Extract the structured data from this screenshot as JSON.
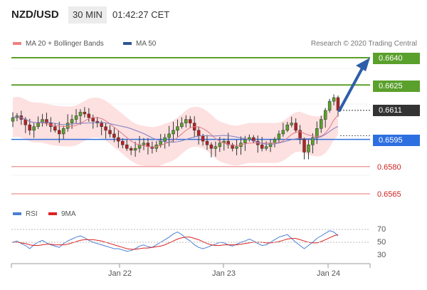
{
  "header": {
    "symbol": "NZD/USD",
    "timeframe": "30 MIN",
    "time": "01:42:27 CET"
  },
  "legend": {
    "ma20_label": "MA 20 + Bollinger Bands",
    "ma50_label": "MA 50",
    "rsi_label": "RSI",
    "ma9_label": "9MA",
    "ma20_color": "#f08080",
    "ma50_color": "#2f5496",
    "rsi_color": "#4a7fd4",
    "ma9_color": "#dd2222"
  },
  "attribution": "Research © 2020 Trading Central",
  "levels": {
    "l0640": "0.6640",
    "l0625": "0.6625",
    "l0611": "0.6611",
    "l0595": "0.6595",
    "l0580": "0.6580",
    "l0565": "0.6565"
  },
  "rsi_ticks": {
    "t70": "70",
    "t50": "50",
    "t30": "30"
  },
  "dates": {
    "d1": "Jan 22",
    "d2": "Jan 23",
    "d3": "Jan 24"
  },
  "chart_data": {
    "type": "candlestick",
    "y_range": [
      0.6555,
      0.665
    ],
    "resistance": [
      0.664,
      0.6625
    ],
    "support": [
      0.6595,
      0.658,
      0.6565
    ],
    "last_price": 0.6611,
    "close_series": [
      0.6607,
      0.6608,
      0.6606,
      0.6603,
      0.66,
      0.6602,
      0.6604,
      0.6606,
      0.6604,
      0.6602,
      0.66,
      0.6598,
      0.6601,
      0.6604,
      0.6606,
      0.6608,
      0.661,
      0.6609,
      0.6607,
      0.6605,
      0.6604,
      0.6602,
      0.66,
      0.6598,
      0.6596,
      0.6594,
      0.6592,
      0.659,
      0.6589,
      0.659,
      0.6592,
      0.6593,
      0.6591,
      0.659,
      0.6592,
      0.6594,
      0.6596,
      0.6598,
      0.66,
      0.6602,
      0.6604,
      0.6606,
      0.6604,
      0.66,
      0.6597,
      0.6594,
      0.6592,
      0.659,
      0.6591,
      0.6593,
      0.6594,
      0.6592,
      0.659,
      0.6591,
      0.6593,
      0.6595,
      0.6596,
      0.6594,
      0.6592,
      0.659,
      0.6591,
      0.6593,
      0.6595,
      0.6598,
      0.66,
      0.6603,
      0.6604,
      0.66,
      0.6595,
      0.6588,
      0.6592,
      0.6596,
      0.6601,
      0.6606,
      0.6611,
      0.6616,
      0.6618,
      0.6611
    ],
    "rsi": [
      50,
      52,
      48,
      45,
      40,
      46,
      50,
      53,
      49,
      46,
      44,
      42,
      48,
      52,
      55,
      58,
      60,
      57,
      53,
      50,
      48,
      46,
      44,
      42,
      40,
      40,
      38,
      36,
      37,
      40,
      44,
      46,
      43,
      42,
      46,
      50,
      54,
      58,
      63,
      66,
      62,
      56,
      52,
      46,
      42,
      40,
      42,
      45,
      47,
      50,
      49,
      46,
      44,
      47,
      50,
      52,
      55,
      52,
      48,
      45,
      46,
      50,
      54,
      58,
      60,
      62,
      56,
      50,
      45,
      40,
      45,
      50,
      56,
      60,
      64,
      68,
      66,
      60
    ],
    "rsi_ma9": [
      50,
      50,
      49,
      48,
      46,
      45,
      45,
      46,
      47,
      47,
      46,
      46,
      46,
      47,
      49,
      51,
      53,
      54,
      54,
      54,
      53,
      52,
      50,
      48,
      46,
      44,
      42,
      40,
      39,
      39,
      40,
      41,
      41,
      42,
      43,
      44,
      46,
      49,
      52,
      55,
      57,
      58,
      58,
      56,
      54,
      51,
      48,
      46,
      45,
      45,
      46,
      46,
      46,
      46,
      47,
      48,
      49,
      50,
      50,
      50,
      49,
      49,
      50,
      51,
      53,
      55,
      56,
      56,
      54,
      52,
      50,
      49,
      49,
      51,
      54,
      57,
      60,
      62
    ]
  }
}
